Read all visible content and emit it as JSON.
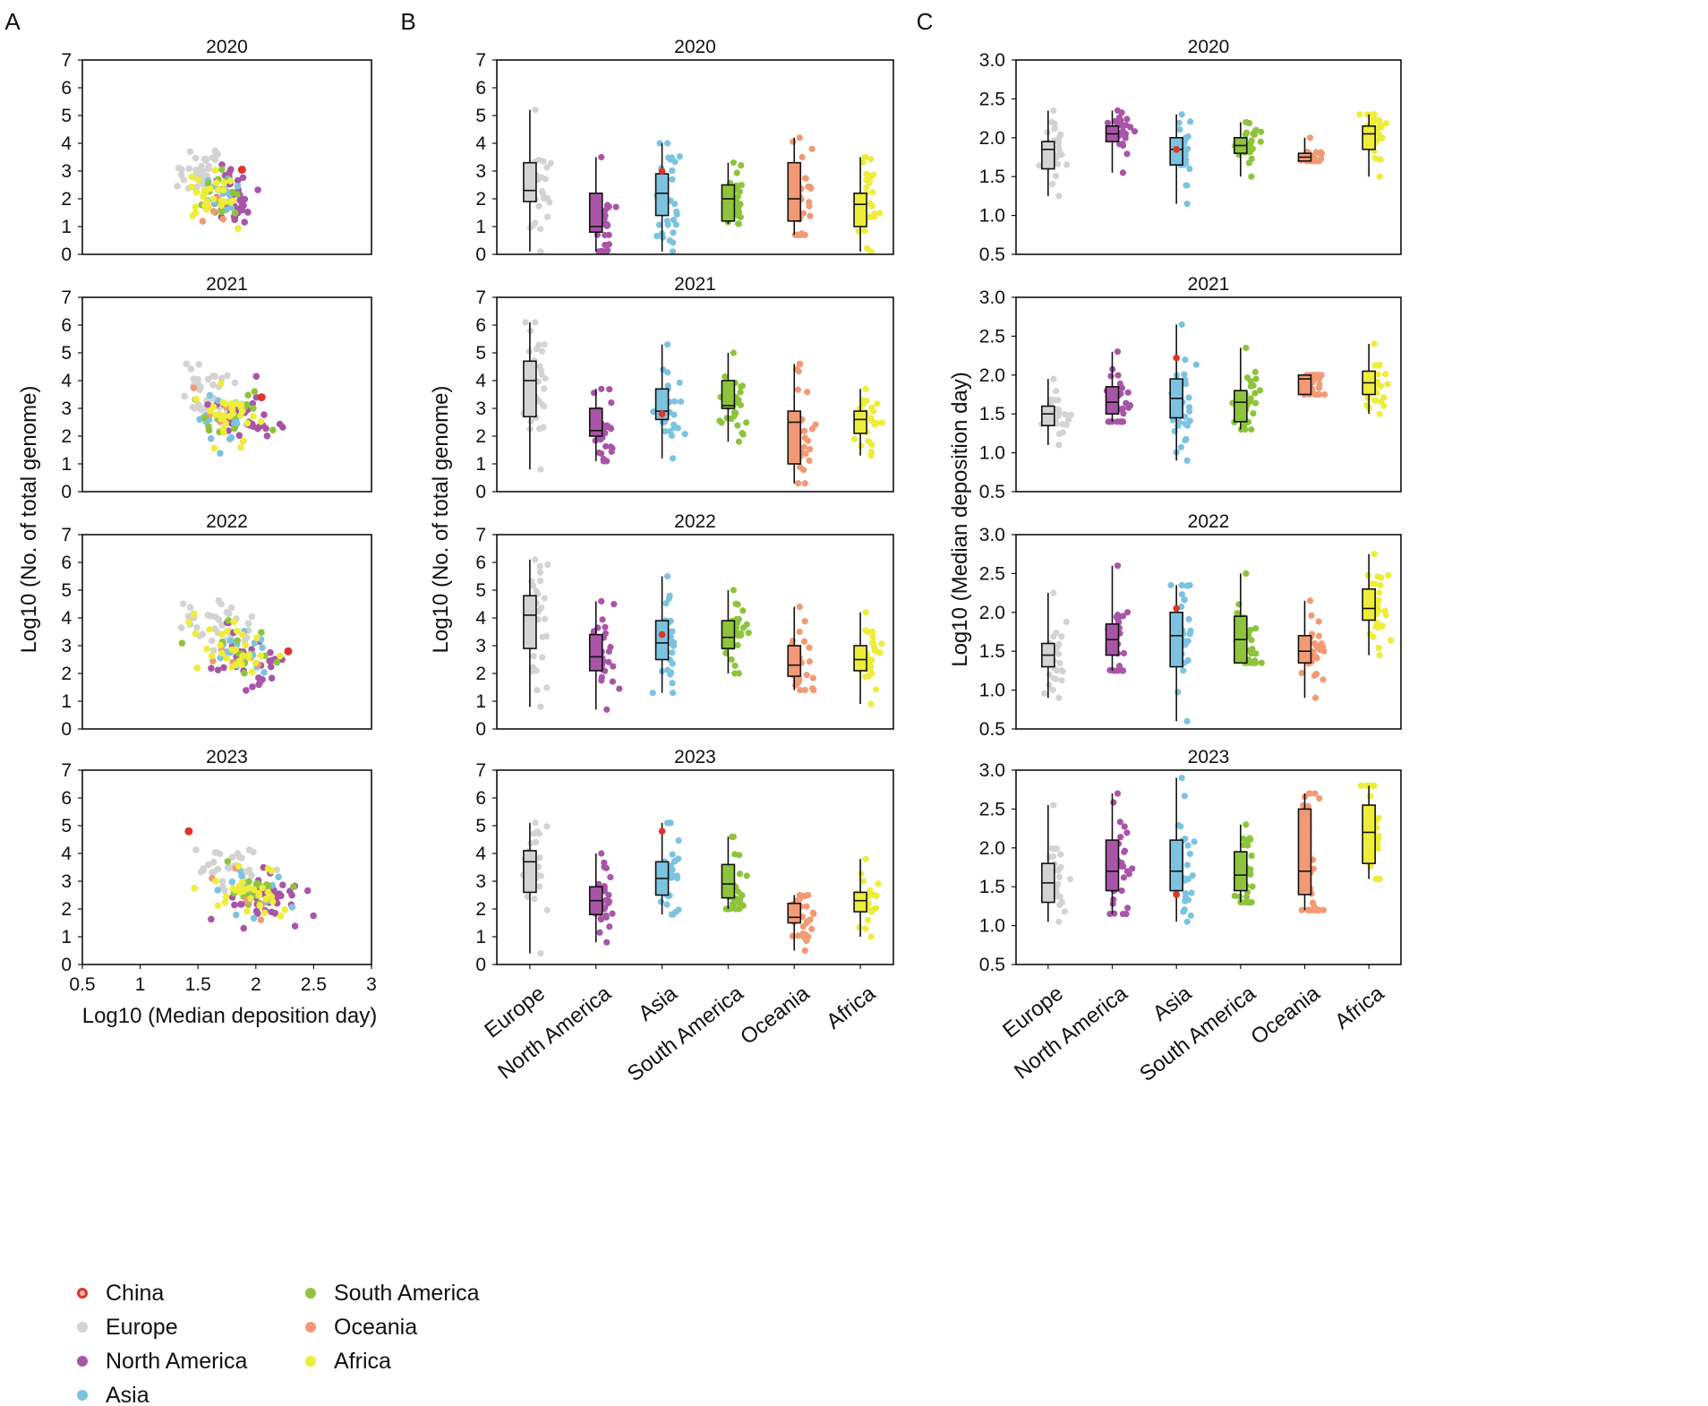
{
  "colors": {
    "China": "#e0332b",
    "Europe": "#d3d3d3",
    "North America": "#a855a8",
    "Asia": "#7cc3e0",
    "South America": "#8ec43c",
    "Oceania": "#f29a75",
    "Africa": "#eded3a"
  },
  "chart_data": {
    "panel_labels": [
      "A",
      "B",
      "C"
    ],
    "years": [
      "2020",
      "2021",
      "2022",
      "2023"
    ],
    "categories": [
      "Europe",
      "North America",
      "Asia",
      "South America",
      "Oceania",
      "Africa"
    ],
    "legend": {
      "placement": "bottom-left",
      "entries": [
        "China",
        "Europe",
        "North America",
        "Asia",
        "South America",
        "Oceania",
        "Africa"
      ]
    },
    "panel_A": {
      "type": "scatter",
      "xlabel": "Log10 (Median deposition day)",
      "ylabel": "Log10 (No. of total genome)",
      "xlim": [
        0.5,
        3
      ],
      "ylim": [
        0,
        7
      ],
      "xticks": [
        "0.5",
        "1",
        "1.5",
        "2",
        "2.5",
        "3"
      ],
      "yticks": [
        "0",
        "1",
        "2",
        "3",
        "4",
        "5",
        "6",
        "7"
      ],
      "china_points": [
        [
          1.88,
          3.05
        ],
        [
          2.05,
          3.4
        ],
        [
          2.28,
          2.8
        ],
        [
          1.42,
          4.8
        ]
      ],
      "spread": [
        {
          "x": [
            1.65,
            0.25
          ],
          "y": [
            2.2,
            1.0
          ]
        },
        {
          "x": [
            1.75,
            0.35
          ],
          "y": [
            2.8,
            1.1
          ]
        },
        {
          "x": [
            1.8,
            0.4
          ],
          "y": [
            3.0,
            1.1
          ]
        },
        {
          "x": [
            1.95,
            0.45
          ],
          "y": [
            2.6,
            0.9
          ]
        }
      ]
    },
    "panel_B": {
      "type": "box",
      "ylabel": "Log10 (No. of total genome)",
      "ylim": [
        0,
        7
      ],
      "yticks": [
        "0",
        "1",
        "2",
        "3",
        "4",
        "5",
        "6",
        "7"
      ],
      "stats": [
        [
          [
            0.1,
            1.9,
            2.3,
            3.3,
            5.2
          ],
          [
            0.1,
            0.8,
            1.0,
            2.2,
            3.5
          ],
          [
            0.1,
            1.4,
            2.2,
            2.9,
            4.0
          ],
          [
            1.1,
            1.2,
            2.0,
            2.5,
            3.3
          ],
          [
            0.7,
            1.2,
            2.0,
            3.3,
            4.2
          ],
          [
            0.1,
            1.0,
            1.8,
            2.2,
            3.5
          ]
        ],
        [
          [
            0.8,
            2.7,
            4.0,
            4.7,
            6.1
          ],
          [
            1.1,
            2.0,
            2.2,
            3.0,
            3.7
          ],
          [
            1.2,
            2.6,
            2.9,
            3.7,
            5.3
          ],
          [
            1.8,
            3.0,
            3.1,
            4.0,
            5.0
          ],
          [
            0.3,
            1.0,
            2.5,
            2.9,
            4.6
          ],
          [
            1.3,
            2.1,
            2.6,
            2.9,
            3.7
          ]
        ],
        [
          [
            0.8,
            2.9,
            4.1,
            4.8,
            6.1
          ],
          [
            0.7,
            2.1,
            2.6,
            3.4,
            4.6
          ],
          [
            1.3,
            2.5,
            3.1,
            3.9,
            5.5
          ],
          [
            2.0,
            2.9,
            3.3,
            3.9,
            5.0
          ],
          [
            1.4,
            1.9,
            2.3,
            3.0,
            4.4
          ],
          [
            0.9,
            2.1,
            2.5,
            3.0,
            4.2
          ]
        ],
        [
          [
            0.4,
            2.6,
            3.7,
            4.1,
            5.1
          ],
          [
            0.8,
            1.8,
            2.3,
            2.8,
            4.0
          ],
          [
            1.8,
            2.5,
            3.1,
            3.7,
            5.1
          ],
          [
            2.0,
            2.4,
            2.9,
            3.6,
            4.6
          ],
          [
            0.5,
            1.5,
            1.7,
            2.2,
            2.5
          ],
          [
            1.0,
            1.9,
            2.3,
            2.6,
            3.8
          ]
        ]
      ],
      "china": [
        3.0,
        2.8,
        3.4,
        4.8
      ]
    },
    "panel_C": {
      "type": "box",
      "ylabel": "Log10 (Median deposition day)",
      "ylim": [
        0.5,
        3.0
      ],
      "yticks": [
        "0.5",
        "1.0",
        "1.5",
        "2.0",
        "2.5",
        "3.0"
      ],
      "stats": [
        [
          [
            1.25,
            1.6,
            1.85,
            1.95,
            2.35
          ],
          [
            1.55,
            1.95,
            2.05,
            2.15,
            2.35
          ],
          [
            1.15,
            1.65,
            1.85,
            2.0,
            2.3
          ],
          [
            1.5,
            1.8,
            1.9,
            2.0,
            2.2
          ],
          [
            1.7,
            1.7,
            1.75,
            1.8,
            2.0
          ],
          [
            1.5,
            1.85,
            2.05,
            2.15,
            2.3
          ]
        ],
        [
          [
            1.1,
            1.35,
            1.5,
            1.6,
            1.95
          ],
          [
            1.4,
            1.5,
            1.65,
            1.85,
            2.3
          ],
          [
            0.9,
            1.45,
            1.7,
            1.95,
            2.65
          ],
          [
            1.3,
            1.4,
            1.65,
            1.8,
            2.35
          ],
          [
            1.75,
            1.75,
            1.95,
            2.0,
            2.0
          ],
          [
            1.5,
            1.75,
            1.9,
            2.05,
            2.4
          ]
        ],
        [
          [
            0.9,
            1.3,
            1.45,
            1.6,
            2.25
          ],
          [
            1.25,
            1.45,
            1.65,
            1.85,
            2.6
          ],
          [
            0.6,
            1.3,
            1.7,
            2.0,
            2.35
          ],
          [
            1.35,
            1.35,
            1.65,
            1.95,
            2.5
          ],
          [
            0.9,
            1.35,
            1.5,
            1.7,
            2.15
          ],
          [
            1.45,
            1.9,
            2.05,
            2.3,
            2.75
          ]
        ],
        [
          [
            1.05,
            1.3,
            1.55,
            1.8,
            2.55
          ],
          [
            1.15,
            1.45,
            1.7,
            2.1,
            2.7
          ],
          [
            1.05,
            1.45,
            1.7,
            2.1,
            2.9
          ],
          [
            1.3,
            1.45,
            1.65,
            1.95,
            2.3
          ],
          [
            1.2,
            1.4,
            1.7,
            2.5,
            2.7
          ],
          [
            1.6,
            1.8,
            2.2,
            2.55,
            2.8
          ]
        ]
      ],
      "china": [
        1.85,
        2.22,
        2.05,
        1.4
      ]
    }
  }
}
